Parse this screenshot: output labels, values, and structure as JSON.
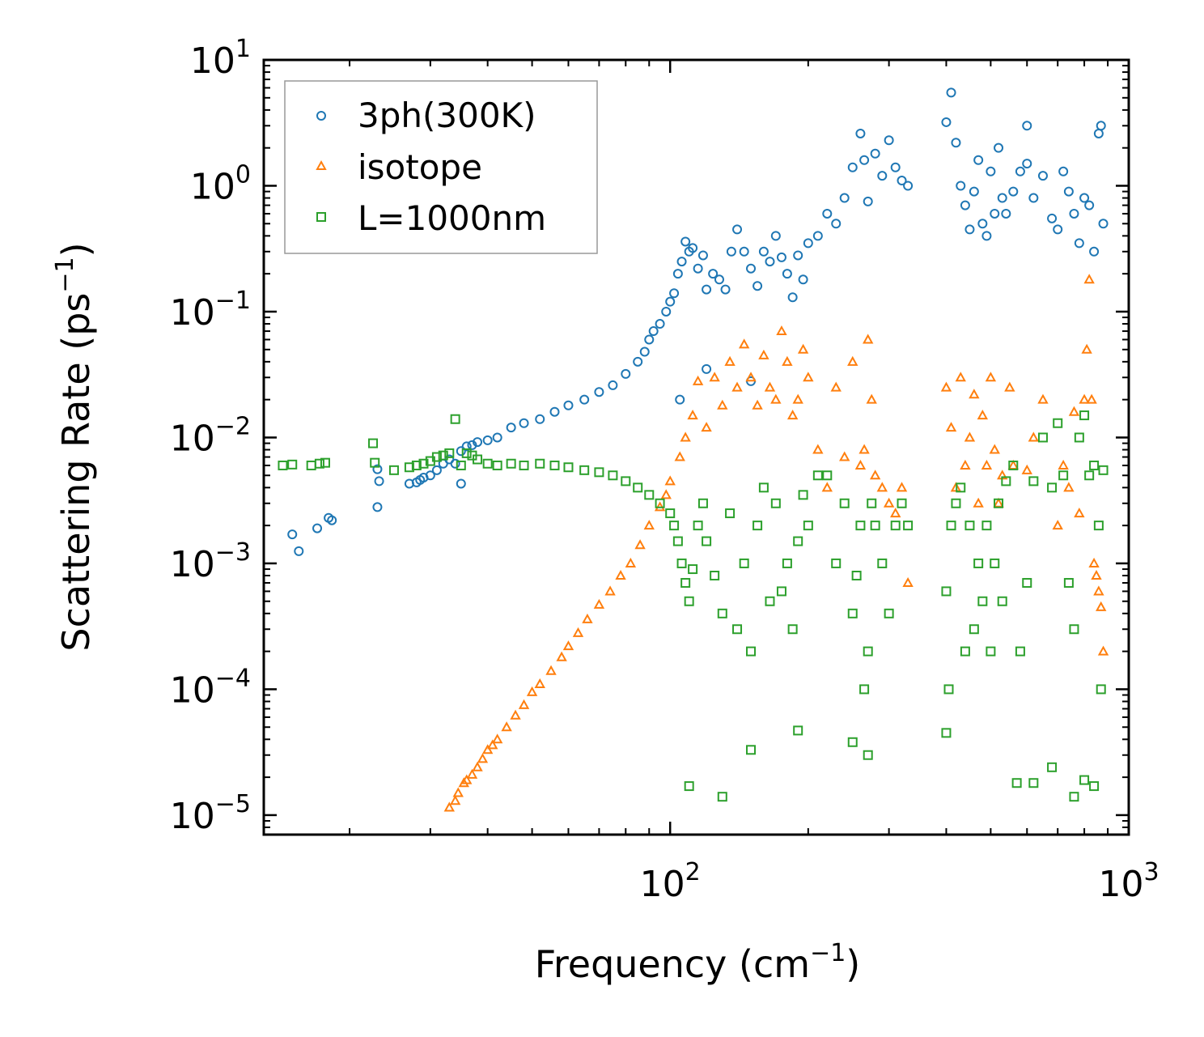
{
  "chart_data": {
    "type": "scatter",
    "xlabel": "Frequency (cm",
    "xlabel_sup": "−1",
    "xlabel_end": ")",
    "ylabel": "Scattering Rate (ps",
    "ylabel_sup": "−1",
    "ylabel_end": ")",
    "x_scale": "log",
    "y_scale": "log",
    "xlim": [
      13,
      1000
    ],
    "ylim": [
      7e-06,
      10
    ],
    "x_ticks": [
      {
        "value": 100,
        "base": "10",
        "exp": "2"
      },
      {
        "value": 1000,
        "base": "10",
        "exp": "3"
      }
    ],
    "y_ticks": [
      {
        "value": 10,
        "base": "10",
        "exp": "1"
      },
      {
        "value": 1,
        "base": "10",
        "exp": "0"
      },
      {
        "value": 0.1,
        "base": "10",
        "exp": "−1"
      },
      {
        "value": 0.01,
        "base": "10",
        "exp": "−2"
      },
      {
        "value": 0.001,
        "base": "10",
        "exp": "−3"
      },
      {
        "value": 0.0001,
        "base": "10",
        "exp": "−4"
      },
      {
        "value": 1e-05,
        "base": "10",
        "exp": "−5"
      }
    ],
    "legend_position": "top-left",
    "series": [
      {
        "name": "3ph(300K)",
        "marker": "circle",
        "color": "#1f77b4",
        "x": [
          15,
          15.5,
          17,
          18,
          18.3,
          23,
          23.2,
          23,
          27,
          28,
          28.5,
          29,
          30,
          31,
          32,
          33,
          34,
          35,
          35,
          36,
          37,
          38,
          40,
          42,
          45,
          48,
          52,
          56,
          60,
          65,
          70,
          75,
          80,
          85,
          88,
          90,
          92,
          95,
          98,
          100,
          102,
          104,
          106,
          108,
          110,
          112,
          115,
          118,
          120,
          124,
          128,
          132,
          136,
          140,
          145,
          150,
          155,
          160,
          165,
          170,
          175,
          180,
          185,
          190,
          195,
          200,
          210,
          220,
          230,
          240,
          250,
          260,
          265,
          270,
          280,
          290,
          300,
          310,
          320,
          330,
          400,
          410,
          420,
          430,
          440,
          450,
          460,
          470,
          480,
          490,
          500,
          510,
          520,
          530,
          540,
          560,
          580,
          600,
          620,
          650,
          680,
          700,
          720,
          740,
          760,
          780,
          800,
          820,
          840,
          860,
          870,
          880,
          600,
          150,
          120,
          105
        ],
        "y": [
          0.0017,
          0.00125,
          0.0019,
          0.0023,
          0.0022,
          0.0028,
          0.0045,
          0.0056,
          0.0043,
          0.0044,
          0.0046,
          0.0048,
          0.005,
          0.0055,
          0.0062,
          0.0067,
          0.0062,
          0.0043,
          0.0078,
          0.0085,
          0.0087,
          0.0092,
          0.0095,
          0.01,
          0.012,
          0.013,
          0.014,
          0.016,
          0.018,
          0.02,
          0.023,
          0.026,
          0.032,
          0.04,
          0.048,
          0.06,
          0.07,
          0.08,
          0.1,
          0.12,
          0.14,
          0.2,
          0.25,
          0.36,
          0.3,
          0.32,
          0.22,
          0.28,
          0.15,
          0.2,
          0.18,
          0.15,
          0.3,
          0.45,
          0.3,
          0.22,
          0.16,
          0.3,
          0.25,
          0.4,
          0.27,
          0.2,
          0.13,
          0.28,
          0.18,
          0.35,
          0.4,
          0.6,
          0.5,
          0.8,
          1.4,
          2.6,
          1.6,
          0.75,
          1.8,
          1.2,
          2.3,
          1.4,
          1.1,
          1.0,
          3.2,
          5.5,
          2.2,
          1.0,
          0.7,
          0.45,
          0.9,
          1.6,
          0.5,
          0.4,
          1.3,
          0.6,
          2.0,
          0.8,
          0.6,
          0.9,
          1.3,
          1.5,
          0.8,
          1.2,
          0.55,
          0.45,
          1.3,
          0.9,
          0.6,
          0.35,
          0.8,
          0.7,
          0.3,
          2.6,
          3.0,
          0.5,
          3.0,
          0.028,
          0.035,
          0.02
        ]
      },
      {
        "name": "isotope",
        "marker": "triangle",
        "color": "#ff7f0e",
        "x": [
          33,
          34,
          34.5,
          35.5,
          36,
          37,
          38,
          39,
          40,
          41,
          42,
          44,
          46,
          48,
          50,
          52,
          55,
          58,
          60,
          63,
          66,
          70,
          74,
          78,
          82,
          86,
          90,
          95,
          98,
          100,
          105,
          108,
          112,
          115,
          120,
          125,
          130,
          135,
          140,
          145,
          150,
          155,
          160,
          165,
          170,
          175,
          180,
          185,
          190,
          195,
          200,
          210,
          220,
          230,
          240,
          250,
          260,
          265,
          270,
          275,
          280,
          290,
          300,
          310,
          320,
          330,
          400,
          410,
          420,
          430,
          440,
          450,
          460,
          470,
          480,
          490,
          500,
          510,
          520,
          530,
          550,
          560,
          600,
          620,
          650,
          700,
          720,
          740,
          760,
          780,
          800,
          810,
          820,
          830,
          840,
          850,
          860,
          870,
          880
        ],
        "y": [
          1.15e-05,
          1.3e-05,
          1.5e-05,
          1.8e-05,
          1.9e-05,
          2.1e-05,
          2.4e-05,
          2.8e-05,
          3.3e-05,
          3.6e-05,
          4e-05,
          5e-05,
          6.2e-05,
          7.5e-05,
          9.5e-05,
          0.00011,
          0.00014,
          0.00018,
          0.00022,
          0.00028,
          0.00036,
          0.00047,
          0.0006,
          0.0008,
          0.001,
          0.0014,
          0.002,
          0.0028,
          0.0035,
          0.0045,
          0.007,
          0.01,
          0.015,
          0.028,
          0.012,
          0.03,
          0.018,
          0.04,
          0.025,
          0.055,
          0.03,
          0.018,
          0.045,
          0.025,
          0.02,
          0.07,
          0.04,
          0.015,
          0.02,
          0.05,
          0.03,
          0.008,
          0.004,
          0.025,
          0.007,
          0.04,
          0.006,
          0.008,
          0.06,
          0.02,
          0.005,
          0.004,
          0.003,
          0.0025,
          0.004,
          0.0007,
          0.025,
          0.012,
          0.004,
          0.03,
          0.006,
          0.01,
          0.022,
          0.003,
          0.015,
          0.006,
          0.03,
          0.008,
          0.003,
          0.005,
          0.025,
          0.006,
          0.0055,
          0.01,
          0.02,
          0.002,
          0.006,
          0.004,
          0.016,
          0.0025,
          0.02,
          0.05,
          0.18,
          0.02,
          0.001,
          0.0008,
          0.0006,
          0.00045,
          0.0002
        ]
      },
      {
        "name": "L=1000nm",
        "marker": "square",
        "color": "#2ca02c",
        "x": [
          14.3,
          15,
          16.5,
          17.2,
          17.7,
          22.5,
          22.7,
          25,
          27,
          28,
          29,
          30,
          31,
          32,
          33,
          34,
          35,
          36,
          37,
          38,
          40,
          42,
          45,
          48,
          52,
          56,
          60,
          65,
          70,
          75,
          80,
          85,
          90,
          95,
          100,
          102,
          104,
          106,
          108,
          110,
          112,
          115,
          118,
          120,
          125,
          130,
          135,
          140,
          145,
          150,
          155,
          160,
          165,
          170,
          175,
          180,
          185,
          190,
          195,
          200,
          210,
          220,
          230,
          240,
          250,
          255,
          260,
          265,
          270,
          275,
          280,
          290,
          300,
          310,
          320,
          330,
          400,
          405,
          410,
          420,
          430,
          440,
          450,
          460,
          470,
          480,
          490,
          500,
          510,
          520,
          530,
          540,
          560,
          580,
          600,
          620,
          650,
          680,
          700,
          720,
          740,
          760,
          780,
          800,
          820,
          840,
          860,
          870,
          880,
          110,
          130,
          150,
          190,
          250,
          270,
          400,
          570,
          620,
          680,
          760,
          800,
          840
        ],
        "y": [
          0.006,
          0.0061,
          0.006,
          0.0062,
          0.0063,
          0.009,
          0.0063,
          0.0055,
          0.0058,
          0.006,
          0.0062,
          0.0065,
          0.007,
          0.0072,
          0.0075,
          0.014,
          0.006,
          0.0075,
          0.0072,
          0.0067,
          0.0062,
          0.006,
          0.0062,
          0.006,
          0.0062,
          0.006,
          0.0058,
          0.0055,
          0.0053,
          0.005,
          0.0045,
          0.004,
          0.0035,
          0.003,
          0.0025,
          0.002,
          0.0015,
          0.001,
          0.0007,
          0.0005,
          0.0009,
          0.002,
          0.003,
          0.0015,
          0.0008,
          0.0004,
          0.0025,
          0.0003,
          0.001,
          0.0002,
          0.002,
          0.004,
          0.0005,
          0.003,
          0.0006,
          0.001,
          0.0003,
          0.0015,
          0.0035,
          0.002,
          0.005,
          0.005,
          0.001,
          0.003,
          0.0004,
          0.0008,
          0.002,
          0.0001,
          0.0002,
          0.003,
          0.002,
          0.001,
          0.0004,
          0.002,
          0.003,
          0.002,
          0.0006,
          0.0001,
          0.002,
          0.003,
          0.004,
          0.0002,
          0.002,
          0.0003,
          0.001,
          0.0005,
          0.002,
          0.0002,
          0.001,
          0.003,
          0.0005,
          0.0045,
          0.006,
          0.0002,
          0.0007,
          0.0045,
          0.01,
          0.004,
          0.013,
          0.005,
          0.0007,
          0.0003,
          0.01,
          0.015,
          0.005,
          0.006,
          0.002,
          0.0001,
          0.0055,
          1.7e-05,
          1.4e-05,
          3.3e-05,
          4.7e-05,
          3.8e-05,
          3e-05,
          4.5e-05,
          1.8e-05,
          1.8e-05,
          2.4e-05,
          1.4e-05,
          1.9e-05,
          1.7e-05
        ]
      }
    ]
  }
}
